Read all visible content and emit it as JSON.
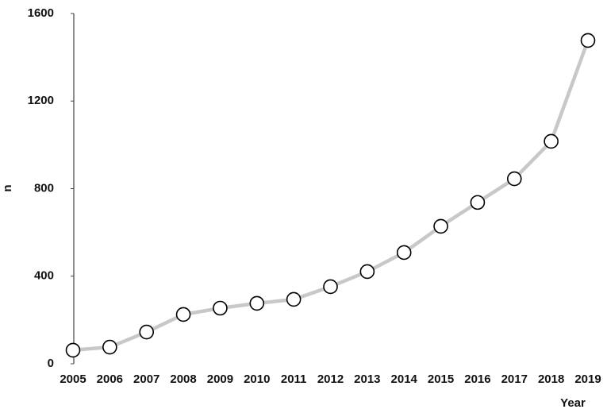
{
  "chart_data": {
    "type": "line",
    "x_label": "Year",
    "y_label": "n",
    "categories": [
      "2005",
      "2006",
      "2007",
      "2008",
      "2009",
      "2010",
      "2011",
      "2012",
      "2013",
      "2014",
      "2015",
      "2016",
      "2017",
      "2018",
      "2019"
    ],
    "values": [
      62,
      76,
      145,
      225,
      254,
      276,
      294,
      352,
      421,
      508,
      628,
      737,
      845,
      1016,
      1477
    ],
    "color": "#c8c8c8",
    "ylim": [
      0,
      1600
    ],
    "yticks": [
      0,
      400,
      800,
      1200,
      1600
    ],
    "grid": false
  }
}
